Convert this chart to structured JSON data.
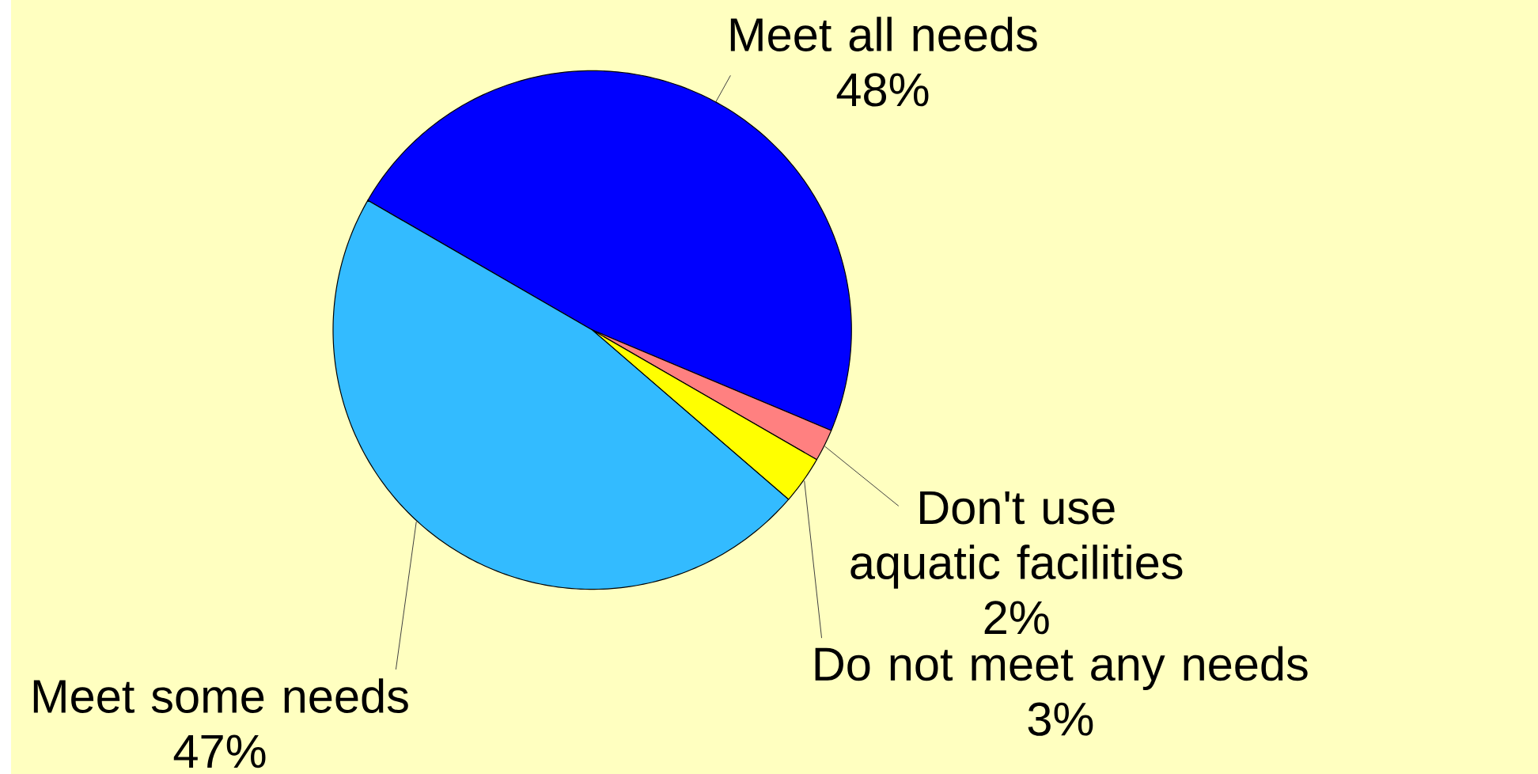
{
  "chart_data": {
    "type": "pie",
    "categories": [
      "Meet all needs",
      "Don't use aquatic facilities",
      "Do not meet any needs",
      "Meet some needs"
    ],
    "values": [
      48,
      2,
      3,
      47
    ],
    "colors": [
      "#0000ff",
      "#ff8080",
      "#ffff00",
      "#33bbff"
    ],
    "value_labels": [
      "48%",
      "2%",
      "3%",
      "47%"
    ]
  }
}
